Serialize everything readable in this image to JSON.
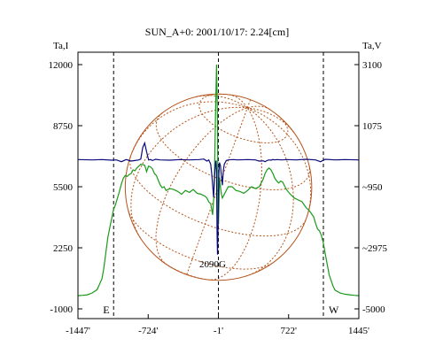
{
  "chart_data": {
    "type": "line",
    "title": "SUN_A+0: 2001/10/17: 2.24[cm]",
    "left_axis": {
      "label": "Ta,I",
      "ticks": [
        12000,
        8750,
        5500,
        2250,
        -1000
      ],
      "tick_labels": [
        "12000",
        "8750",
        "5500",
        "2250",
        "-1000"
      ],
      "range": [
        -1000,
        12000
      ]
    },
    "right_axis": {
      "label": "Ta,V",
      "ticks": [
        3100,
        1075,
        -950,
        -2975,
        -5000
      ],
      "tick_labels": [
        "3100",
        "1075",
        "~950",
        "~2975",
        "-5000"
      ],
      "range": [
        -5000,
        3100
      ]
    },
    "x_axis": {
      "ticks": [
        -1447,
        -724,
        -1,
        722,
        1445
      ],
      "tick_labels": [
        "-1447'",
        "-724'",
        "-1'",
        "722'",
        "1445'"
      ],
      "range": [
        -1447,
        1445
      ]
    },
    "vertical_markers": [
      {
        "x": -1080,
        "label": "E"
      },
      {
        "x": -1,
        "label": ""
      },
      {
        "x": 1080,
        "label": "W"
      }
    ],
    "solar_disk": {
      "radius": 960,
      "color": "#b5541c"
    },
    "annotation": {
      "text": "2090G",
      "x": -60,
      "y": 1400
    },
    "grid": false,
    "series": [
      {
        "axis": "left",
        "color": "#1a9a1a",
        "x": [
          -1447,
          -1400,
          -1350,
          -1300,
          -1250,
          -1200,
          -1180,
          -1160,
          -1140,
          -1120,
          -1100,
          -1080,
          -1060,
          -1040,
          -1020,
          -1000,
          -980,
          -960,
          -940,
          -920,
          -900,
          -880,
          -860,
          -840,
          -800,
          -760,
          -740,
          -720,
          -700,
          -680,
          -660,
          -640,
          -620,
          -600,
          -580,
          -560,
          -540,
          -500,
          -460,
          -420,
          -380,
          -340,
          -300,
          -260,
          -220,
          -180,
          -140,
          -120,
          -100,
          -80,
          -60,
          -50,
          -40,
          -30,
          -20,
          -10,
          -5,
          0,
          5,
          10,
          20,
          30,
          40,
          50,
          60,
          80,
          100,
          140,
          180,
          220,
          260,
          300,
          340,
          380,
          420,
          460,
          480,
          500,
          520,
          540,
          560,
          580,
          600,
          620,
          640,
          660,
          700,
          740,
          780,
          820,
          860,
          900,
          940,
          980,
          1000,
          1020,
          1040,
          1060,
          1080,
          1100,
          1120,
          1140,
          1160,
          1180,
          1200,
          1250,
          1300,
          1350,
          1400,
          1445
        ],
        "y": [
          -300,
          -280,
          -250,
          -150,
          20,
          600,
          1200,
          2000,
          2800,
          3300,
          3800,
          4300,
          4550,
          4900,
          5250,
          5650,
          5950,
          6100,
          6050,
          6150,
          6200,
          6400,
          6350,
          6500,
          6700,
          6650,
          6300,
          6600,
          6550,
          6450,
          6200,
          6100,
          5850,
          5600,
          5450,
          5500,
          5300,
          5400,
          5350,
          5250,
          5100,
          5300,
          5200,
          5350,
          5150,
          5100,
          5000,
          4900,
          4700,
          4600,
          4000,
          4800,
          6500,
          9500,
          12000,
          9000,
          4000,
          3500,
          4700,
          6000,
          5500,
          5100,
          4900,
          5000,
          5100,
          5300,
          5500,
          5500,
          5300,
          5250,
          5150,
          5300,
          5500,
          5400,
          5500,
          5900,
          6200,
          6400,
          6500,
          6400,
          6200,
          5950,
          5800,
          5700,
          5800,
          5750,
          5350,
          5100,
          4900,
          4800,
          4700,
          4400,
          4200,
          3900,
          3550,
          3250,
          3150,
          2900,
          2500,
          1900,
          1350,
          800,
          500,
          200,
          0,
          -150,
          -220,
          -250,
          -280,
          -300
        ]
      },
      {
        "axis": "right",
        "color": "#0a0a7a",
        "x": [
          -1447,
          -1300,
          -1200,
          -1100,
          -1050,
          -1000,
          -950,
          -900,
          -860,
          -820,
          -800,
          -780,
          -760,
          -740,
          -720,
          -700,
          -680,
          -650,
          -600,
          -500,
          -400,
          -300,
          -200,
          -150,
          -120,
          -100,
          -80,
          -70,
          -60,
          -50,
          -40,
          -30,
          -25,
          -20,
          -15,
          -10,
          -5,
          0,
          5,
          10,
          20,
          30,
          40,
          50,
          60,
          80,
          100,
          150,
          200,
          300,
          380,
          400,
          420,
          440,
          460,
          480,
          500,
          520,
          540,
          560,
          580,
          600,
          650,
          700,
          800,
          900,
          1000,
          1050,
          1100,
          1200,
          1300,
          1445
        ],
        "y": [
          -50,
          -60,
          -50,
          -70,
          -60,
          -120,
          -50,
          -100,
          -80,
          -60,
          -30,
          350,
          500,
          200,
          -60,
          -50,
          -80,
          -40,
          -60,
          -70,
          -50,
          -60,
          -50,
          -30,
          -100,
          -60,
          -200,
          -500,
          -900,
          -1300,
          -600,
          -150,
          -80,
          -400,
          -2500,
          -3200,
          -2300,
          -1100,
          -400,
          -150,
          -250,
          -600,
          -900,
          -400,
          -200,
          -80,
          -60,
          -50,
          -60,
          -50,
          -60,
          -80,
          -100,
          -100,
          -90,
          -120,
          -80,
          -60,
          -70,
          -50,
          -60,
          -50,
          -60,
          -50,
          -60,
          -40,
          -60,
          -120,
          -40,
          -60,
          -50,
          -60
        ]
      }
    ]
  }
}
